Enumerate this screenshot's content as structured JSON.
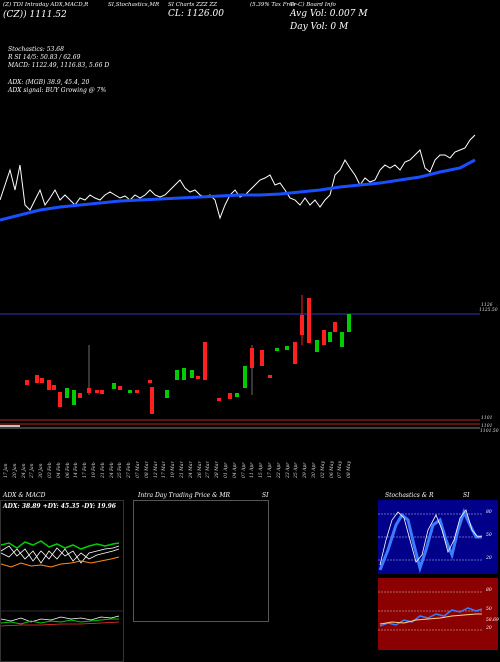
{
  "header": {
    "line1_left": "(Z) TDI Intraday ADX,MACD,R",
    "line1_mid": "SI,Stochastics,MR",
    "line1_mid2": "SI Charts ZZZ ZZ",
    "line1_right": "(5.39% Tax Free",
    "line1_right2": "Tr-C) Board Info",
    "line2_left": "(CZ)) 1111.52",
    "price_label": "CL: 1126.00",
    "vol_label": "Avg Vol: 0.007 M",
    "dayvol_label": "Day Vol: 0   M"
  },
  "indicators": {
    "stochastics": "Stochastics: 53.68",
    "rsi": "R                  SI 14/5: 50.83 / 62.69",
    "macd": "MACD: 1122.49, 1116.83, 5.66  D",
    "adx": "ADX:                    (MGB) 38.9, 45.4, 20",
    "adx_signal": "ADX  signal:                          BUY Growing @ 7%"
  },
  "price_axis": {
    "upper_1": "1126",
    "upper_2": "1125.50",
    "lower_1": "1101",
    "lower_2": "1101",
    "lower_3": "1101.50"
  },
  "dates": [
    "17 Jan",
    "20 Jan",
    "24 Jan",
    "27 Jan",
    "30 Jan",
    "03 Feb",
    "04 Feb",
    "06 Feb",
    "14 Feb",
    "17 Feb",
    "19 Feb",
    "21 Feb",
    "24 Feb",
    "25 Feb",
    "27 Feb",
    "07 Mar",
    "08 Mar",
    "12 Mar",
    "17 Mar",
    "19 Mar",
    "21 Mar",
    "24 Mar",
    "26 Mar",
    "27 Mar",
    "28 Mar",
    "01 Apr",
    "04 Apr",
    "07 Apr",
    "11 Apr",
    "15 Apr",
    "17 Apr",
    "22 Apr",
    "23 Apr",
    "25 Apr",
    "29 Apr",
    "30 Apr",
    "02 May",
    "06 May",
    "07 May",
    "08 May"
  ],
  "panels": {
    "adx_title": "ADX  & MACD",
    "adx_values": "ADX: 38.89  +DY: 45.35  -DY: 19.96",
    "intraday_title": "Intra  Day Trading Price  & MR",
    "intraday_title2": "SI",
    "stoch_title": "Stochastics & R",
    "stoch_title2": "SI",
    "stoch_levels": [
      "80",
      "50",
      "20"
    ],
    "rsi_levels": [
      "80",
      "50",
      "20"
    ],
    "rsi_value": "58.69"
  },
  "colors": {
    "background": "#000000",
    "ma_line": "#1a4fff",
    "price_line": "#ffffff",
    "up_candle": "#00cc00",
    "down_candle": "#ff2020",
    "stoch_bg": "#00008b",
    "rsi_bg": "#8b0000"
  }
}
